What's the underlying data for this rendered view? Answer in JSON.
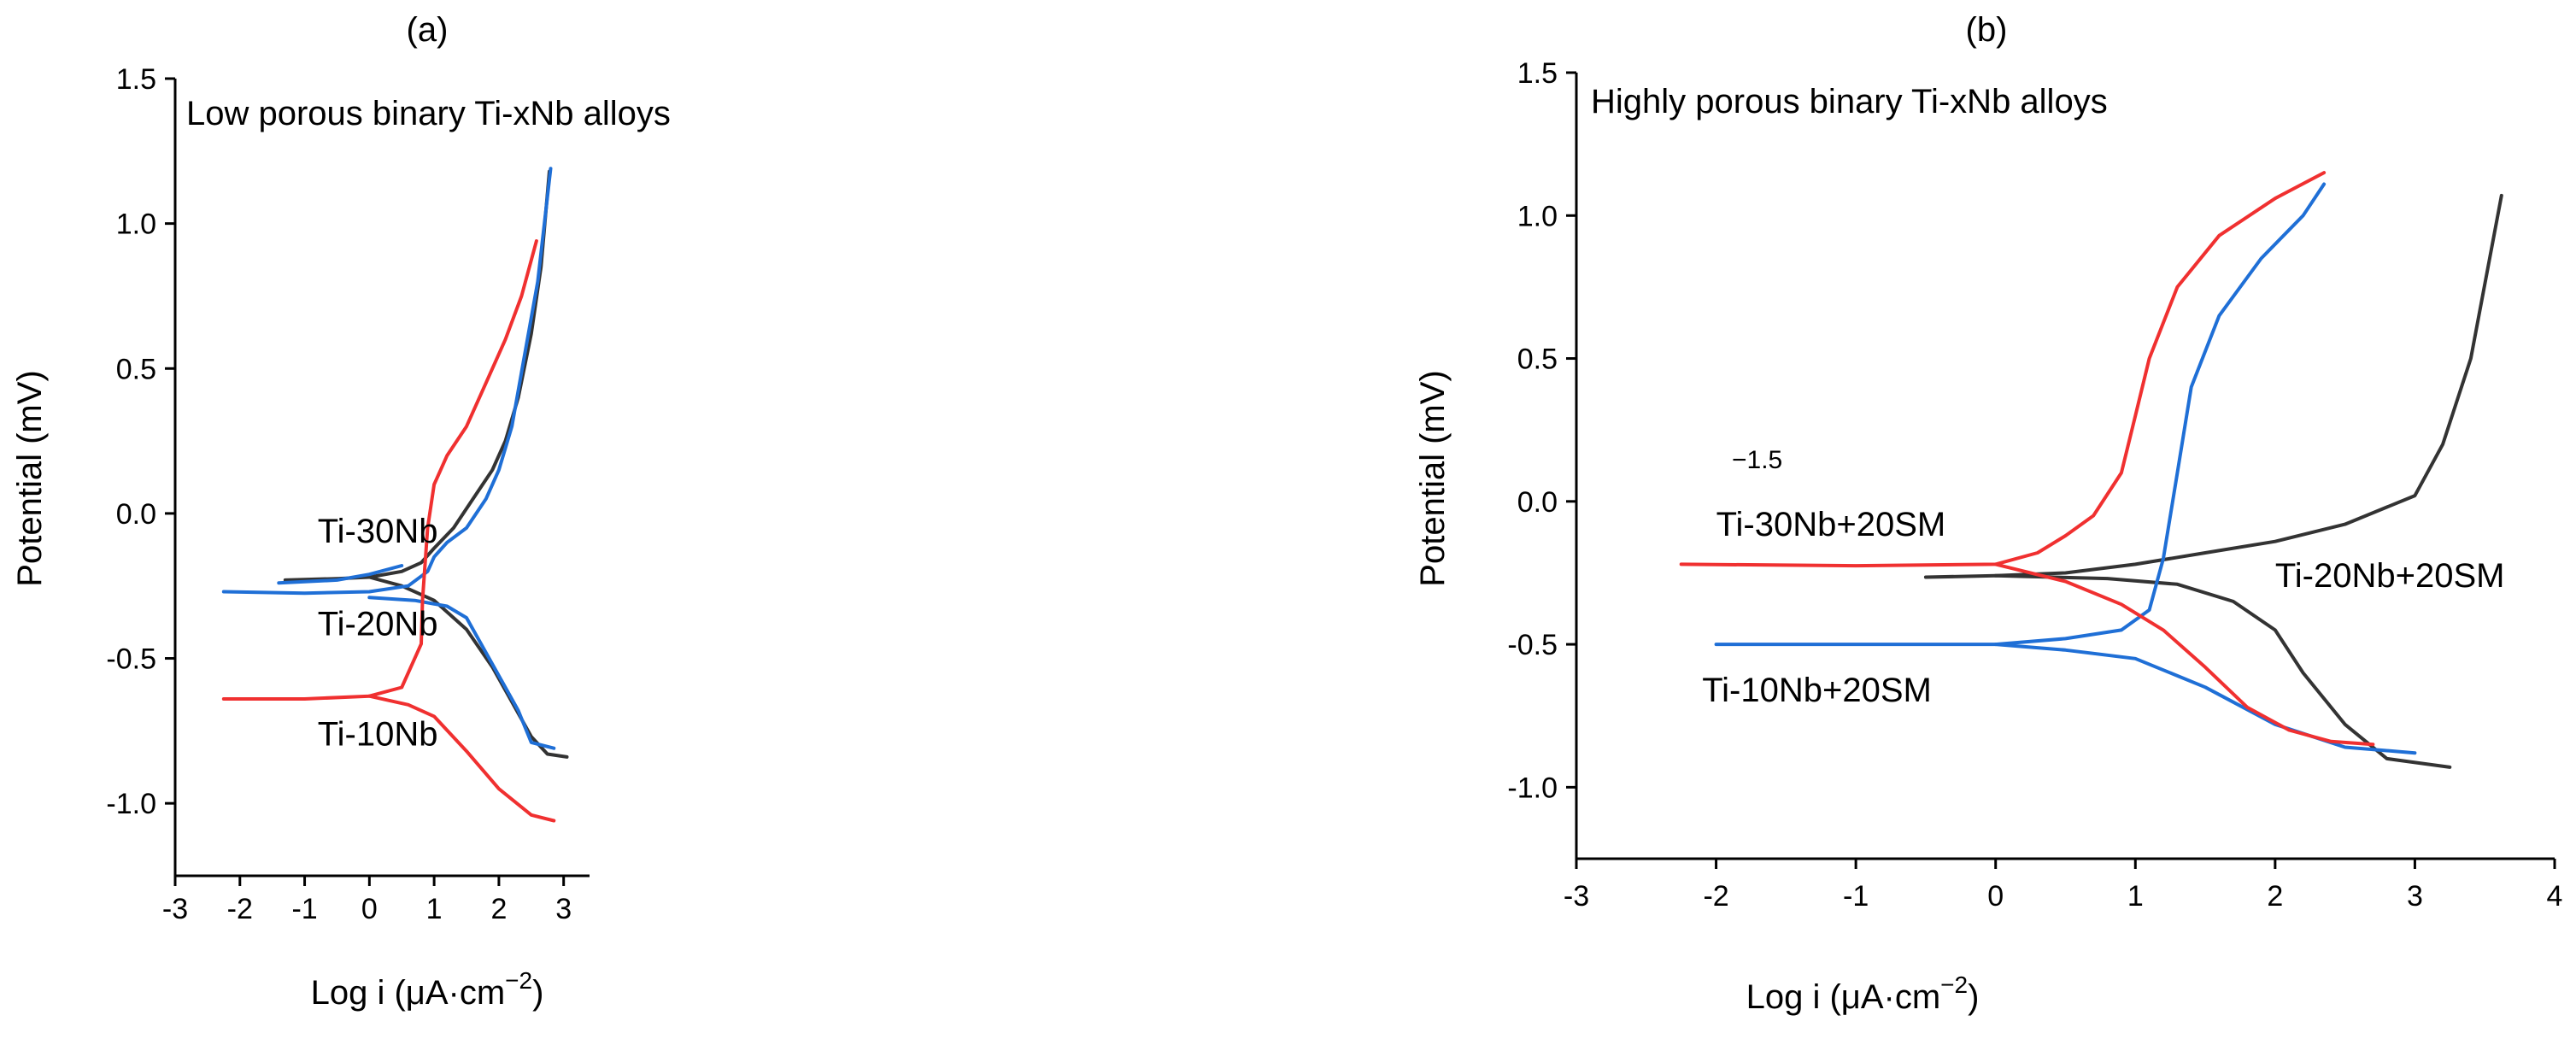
{
  "chart_data": [
    {
      "type": "line",
      "panel_label": "(a)",
      "title": "Low porous binary Ti-xNb alloys",
      "xlabel": "Log i (μA·cm",
      "xlabel_sup": "−2",
      "xlabel_close": ")",
      "ylabel": "Potential (mV)",
      "xlim": [
        -3,
        3.4
      ],
      "ylim": [
        -1.25,
        1.5
      ],
      "xticks": [
        -3,
        -2,
        -1,
        0,
        1,
        2,
        3
      ],
      "yticks": [
        -1.0,
        -0.5,
        0.0,
        0.5,
        1.0,
        1.5
      ],
      "xtick_labels": [
        "-3",
        "-2",
        "-1",
        "0",
        "1",
        "2",
        "3"
      ],
      "ytick_labels": [
        "-1.0",
        "-0.5",
        "0.0",
        "0.5",
        "1.0",
        "1.5"
      ],
      "annotations": [
        {
          "text": "Ti-30Nb",
          "x": -0.8,
          "y": -0.1
        },
        {
          "text": "Ti-20Nb",
          "x": -0.8,
          "y": -0.42
        },
        {
          "text": "Ti-10Nb",
          "x": -0.8,
          "y": -0.8
        }
      ],
      "series": [
        {
          "name": "Ti-30Nb",
          "color": "#333333",
          "points": [
            [
              -1.3,
              -0.23
            ],
            [
              -0.5,
              -0.225
            ],
            [
              0.0,
              -0.22
            ],
            [
              0.5,
              -0.2
            ],
            [
              0.8,
              -0.17
            ],
            [
              1.0,
              -0.12
            ],
            [
              1.3,
              -0.05
            ],
            [
              1.6,
              0.05
            ],
            [
              1.9,
              0.15
            ],
            [
              2.1,
              0.25
            ],
            [
              2.3,
              0.4
            ],
            [
              2.5,
              0.62
            ],
            [
              2.65,
              0.85
            ],
            [
              2.78,
              1.18
            ]
          ],
          "points2": [
            [
              0.0,
              -0.22
            ],
            [
              0.5,
              -0.25
            ],
            [
              1.0,
              -0.3
            ],
            [
              1.5,
              -0.4
            ],
            [
              1.9,
              -0.53
            ],
            [
              2.2,
              -0.65
            ],
            [
              2.5,
              -0.77
            ],
            [
              2.75,
              -0.83
            ],
            [
              3.05,
              -0.84
            ]
          ]
        },
        {
          "name": "Ti-20Nb",
          "color": "#1f6fd6",
          "points": [
            [
              -2.25,
              -0.27
            ],
            [
              -1.0,
              -0.275
            ],
            [
              0.0,
              -0.27
            ],
            [
              0.6,
              -0.25
            ],
            [
              0.9,
              -0.2
            ],
            [
              1.0,
              -0.15
            ],
            [
              1.2,
              -0.1
            ],
            [
              1.5,
              -0.05
            ],
            [
              1.8,
              0.05
            ],
            [
              2.0,
              0.15
            ],
            [
              2.2,
              0.3
            ],
            [
              2.4,
              0.55
            ],
            [
              2.6,
              0.8
            ],
            [
              2.8,
              1.19
            ]
          ],
          "points2": [
            [
              -1.4,
              -0.24
            ],
            [
              -0.5,
              -0.23
            ],
            [
              0.0,
              -0.21
            ],
            [
              0.5,
              -0.18
            ]
          ],
          "points3": [
            [
              0.0,
              -0.29
            ],
            [
              0.7,
              -0.3
            ],
            [
              1.2,
              -0.32
            ],
            [
              1.5,
              -0.36
            ],
            [
              1.8,
              -0.48
            ],
            [
              2.1,
              -0.6
            ],
            [
              2.3,
              -0.68
            ],
            [
              2.5,
              -0.79
            ],
            [
              2.85,
              -0.81
            ]
          ]
        },
        {
          "name": "Ti-10Nb",
          "color": "#f03030",
          "points": [
            [
              -2.25,
              -0.64
            ],
            [
              -1.0,
              -0.64
            ],
            [
              0.0,
              -0.63
            ],
            [
              0.5,
              -0.6
            ],
            [
              0.8,
              -0.45
            ],
            [
              0.82,
              -0.3
            ],
            [
              0.9,
              -0.05
            ],
            [
              1.0,
              0.1
            ],
            [
              1.2,
              0.2
            ],
            [
              1.5,
              0.3
            ],
            [
              1.8,
              0.45
            ],
            [
              2.1,
              0.6
            ],
            [
              2.35,
              0.75
            ],
            [
              2.58,
              0.94
            ]
          ],
          "points2": [
            [
              0.0,
              -0.63
            ],
            [
              0.6,
              -0.66
            ],
            [
              1.0,
              -0.7
            ],
            [
              1.5,
              -0.82
            ],
            [
              2.0,
              -0.95
            ],
            [
              2.5,
              -1.04
            ],
            [
              2.85,
              -1.06
            ]
          ]
        }
      ]
    },
    {
      "type": "line",
      "panel_label": "(b)",
      "title": "Highly porous binary Ti-xNb alloys",
      "xlabel": "Log i (μA·cm",
      "xlabel_sup": "−2",
      "xlabel_close": ")",
      "ylabel": "Potential (mV)",
      "stray_label": "−1.5",
      "xlim": [
        -3,
        4
      ],
      "ylim": [
        -1.25,
        1.5
      ],
      "xticks": [
        -3,
        -2,
        -1,
        0,
        1,
        2,
        3,
        4
      ],
      "yticks": [
        -1.0,
        -0.5,
        0.0,
        0.5,
        1.0,
        1.5
      ],
      "xtick_labels": [
        "-3",
        "-2",
        "-1",
        "0",
        "1",
        "2",
        "3",
        "4"
      ],
      "ytick_labels": [
        "-1.0",
        "-0.5",
        "0.0",
        "0.5",
        "1.0",
        "1.5"
      ],
      "annotations": [
        {
          "text": "Ti-30Nb+20SM",
          "x": -2.0,
          "y": -0.12
        },
        {
          "text": "Ti-20Nb+20SM",
          "x": 2.0,
          "y": -0.3
        },
        {
          "text": "Ti-10Nb+20SM",
          "x": -2.1,
          "y": -0.7
        }
      ],
      "series": [
        {
          "name": "Ti-20Nb+20SM",
          "color": "#333333",
          "points": [
            [
              -0.5,
              -0.265
            ],
            [
              0.0,
              -0.26
            ],
            [
              0.5,
              -0.25
            ],
            [
              1.0,
              -0.22
            ],
            [
              1.5,
              -0.18
            ],
            [
              2.0,
              -0.14
            ],
            [
              2.5,
              -0.08
            ],
            [
              3.0,
              0.02
            ],
            [
              3.2,
              0.2
            ],
            [
              3.4,
              0.5
            ],
            [
              3.62,
              1.07
            ]
          ],
          "points2": [
            [
              0.0,
              -0.26
            ],
            [
              0.8,
              -0.27
            ],
            [
              1.3,
              -0.29
            ],
            [
              1.7,
              -0.35
            ],
            [
              2.0,
              -0.45
            ],
            [
              2.2,
              -0.6
            ],
            [
              2.5,
              -0.78
            ],
            [
              2.8,
              -0.9
            ],
            [
              3.25,
              -0.93
            ]
          ]
        },
        {
          "name": "Ti-10Nb+20SM",
          "color": "#1f6fd6",
          "points": [
            [
              -2.0,
              -0.5
            ],
            [
              -1.0,
              -0.5
            ],
            [
              0.0,
              -0.5
            ],
            [
              0.5,
              -0.48
            ],
            [
              0.9,
              -0.45
            ],
            [
              1.1,
              -0.38
            ],
            [
              1.2,
              -0.2
            ],
            [
              1.3,
              0.1
            ],
            [
              1.4,
              0.4
            ],
            [
              1.6,
              0.65
            ],
            [
              1.9,
              0.85
            ],
            [
              2.2,
              1.0
            ],
            [
              2.35,
              1.11
            ]
          ],
          "points2": [
            [
              0.0,
              -0.5
            ],
            [
              0.5,
              -0.52
            ],
            [
              1.0,
              -0.55
            ],
            [
              1.5,
              -0.65
            ],
            [
              2.0,
              -0.78
            ],
            [
              2.5,
              -0.86
            ],
            [
              3.0,
              -0.88
            ]
          ]
        },
        {
          "name": "Ti-30Nb+20SM",
          "color": "#f03030",
          "points": [
            [
              -2.25,
              -0.22
            ],
            [
              -1.0,
              -0.225
            ],
            [
              0.0,
              -0.22
            ],
            [
              0.3,
              -0.18
            ],
            [
              0.5,
              -0.12
            ],
            [
              0.7,
              -0.05
            ],
            [
              0.9,
              0.1
            ],
            [
              1.0,
              0.3
            ],
            [
              1.1,
              0.5
            ],
            [
              1.3,
              0.75
            ],
            [
              1.6,
              0.93
            ],
            [
              2.0,
              1.06
            ],
            [
              2.35,
              1.15
            ]
          ],
          "points2": [
            [
              0.0,
              -0.22
            ],
            [
              0.5,
              -0.28
            ],
            [
              0.9,
              -0.36
            ],
            [
              1.2,
              -0.45
            ],
            [
              1.5,
              -0.58
            ],
            [
              1.8,
              -0.72
            ],
            [
              2.1,
              -0.8
            ],
            [
              2.4,
              -0.84
            ],
            [
              2.7,
              -0.85
            ]
          ]
        }
      ]
    }
  ]
}
